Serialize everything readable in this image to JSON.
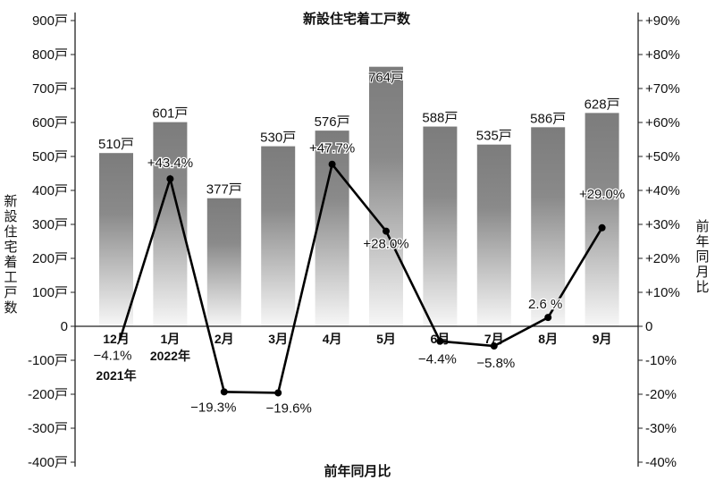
{
  "chart_data": {
    "type": "bar",
    "title": "新設住宅着工戸数",
    "xlabel": "前年同月比",
    "ylabel": "新設住宅着工戸数",
    "y2label": "前年同月比",
    "categories": [
      "12月",
      "1月",
      "2月",
      "3月",
      "4月",
      "5月",
      "6月",
      "7月",
      "8月",
      "9月"
    ],
    "year_labels": [
      {
        "index": 0,
        "text": "2021年"
      },
      {
        "index": 1,
        "text": "2022年"
      }
    ],
    "ylim": [
      -400,
      900
    ],
    "y2lim": [
      -40,
      90
    ],
    "yticks": [
      "900戸",
      "800戸",
      "700戸",
      "600戸",
      "500戸",
      "400戸",
      "300戸",
      "200戸",
      "100戸",
      "0",
      "-100戸",
      "-200戸",
      "-300戸",
      "-400戸"
    ],
    "y2ticks": [
      "+90%",
      "+80%",
      "+70%",
      "+60%",
      "+50%",
      "+40%",
      "+30%",
      "+20%",
      "+10%",
      "0",
      "-10%",
      "-20%",
      "-30%",
      "-40%"
    ],
    "series": [
      {
        "name": "新設住宅着工戸数",
        "type": "bar",
        "values": [
          510,
          601,
          377,
          530,
          576,
          764,
          588,
          535,
          586,
          628
        ],
        "labels": [
          "510戸",
          "601戸",
          "377戸",
          "530戸",
          "576戸",
          "764戸",
          "588戸",
          "535戸",
          "586戸",
          "628戸"
        ]
      },
      {
        "name": "前年同月比",
        "type": "line",
        "axis": "right",
        "values": [
          -4.1,
          43.4,
          -19.3,
          -19.6,
          47.7,
          28.0,
          -4.4,
          -5.8,
          2.6,
          29.0
        ],
        "labels": [
          "−4.1%",
          "+43.4%",
          "−19.3%",
          "−19.6%",
          "+47.7%",
          "+28.0%",
          "−4.4%",
          "−5.8%",
          "2.6 %",
          "+29.0%"
        ]
      }
    ],
    "colors": {
      "bar_top": "#808080",
      "bar_bottom": "#f7f7f7",
      "line": "#000000"
    },
    "grid": false
  }
}
